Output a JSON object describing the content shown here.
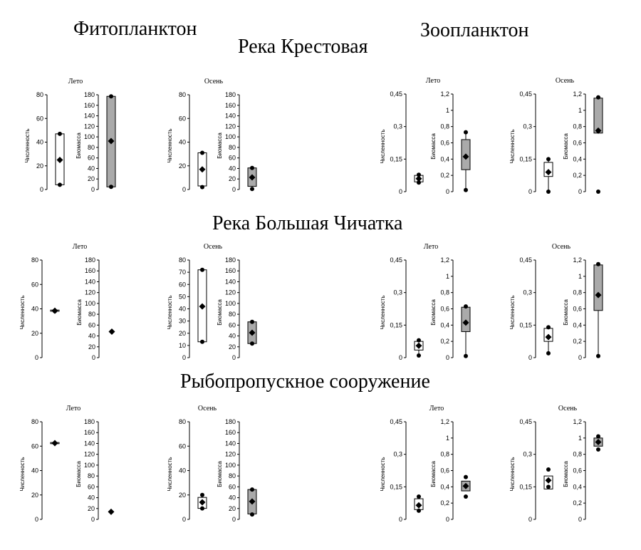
{
  "headings": {
    "phyto": "Фитопланктон",
    "zoo": "Зоопланктон",
    "rivers": [
      "Река Крестовая",
      "Река Большая Чичатка",
      "Рыбопропускное сооружение"
    ]
  },
  "colors": {
    "fill_numbers": "#ffffff",
    "fill_biomass": "#aaaaaa",
    "stroke": "#000000"
  },
  "chart_data": [
    {
      "type": "boxplot",
      "group": "Фитопланктон",
      "site": "Река Крестовая",
      "title": "Лето",
      "left": {
        "ylabel": "Численность",
        "ylim": [
          0,
          80
        ],
        "ticks": [
          "0",
          "20",
          "40",
          "60",
          "80"
        ],
        "box": [
          4,
          47
        ],
        "points": [
          4,
          47
        ],
        "mean": 25
      },
      "right": {
        "ylabel": "Биомасса",
        "ylim": [
          0,
          180
        ],
        "ticks": [
          "0",
          "20",
          "40",
          "60",
          "80",
          "100",
          "120",
          "140",
          "160",
          "180"
        ],
        "box": [
          5,
          177
        ],
        "points": [
          5,
          177
        ],
        "mean": 92
      }
    },
    {
      "type": "boxplot",
      "group": "Фитопланктон",
      "site": "Река Крестовая",
      "title": "Осень",
      "left": {
        "ylabel": "Численность",
        "ylim": [
          0,
          80
        ],
        "ticks": [
          "0",
          "20",
          "40",
          "60",
          "80"
        ],
        "box": [
          3,
          31
        ],
        "points": [
          2,
          31
        ],
        "mean": 17
      },
      "right": {
        "ylabel": "Биомасса",
        "ylim": [
          0,
          180
        ],
        "ticks": [
          "0",
          "20",
          "40",
          "60",
          "80",
          "100",
          "120",
          "140",
          "160",
          "180"
        ],
        "box": [
          6,
          41
        ],
        "points": [
          1,
          41
        ],
        "mean": 23
      }
    },
    {
      "type": "boxplot",
      "group": "Зоопланктон",
      "site": "Река Крестовая",
      "title": "Лето",
      "left": {
        "ylabel": "Численность",
        "ylim": [
          0,
          0.45
        ],
        "ticks": [
          "0",
          "0,15",
          "0,3",
          "0,45"
        ],
        "box": [
          0.045,
          0.075
        ],
        "points": [
          0.042,
          0.078
        ],
        "mean": 0.06
      },
      "right": {
        "ylabel": "Биомасса",
        "ylim": [
          0,
          1.2
        ],
        "ticks": [
          "0",
          "0,2",
          "0,4",
          "0,6",
          "0,8",
          "1",
          "1,2"
        ],
        "box": [
          0.27,
          0.64
        ],
        "whisker": [
          0.02,
          0.73
        ],
        "points": [
          0.02,
          0.73
        ],
        "mean": 0.43
      }
    },
    {
      "type": "boxplot",
      "group": "Зоопланктон",
      "site": "Река Крестовая",
      "title": "Осень",
      "left": {
        "ylabel": "Численность",
        "ylim": [
          0,
          0.45
        ],
        "ticks": [
          "0",
          "0,15",
          "0,3",
          "0,45"
        ],
        "box": [
          0.07,
          0.135
        ],
        "whisker": [
          0,
          0.15
        ],
        "points": [
          0,
          0.15
        ],
        "mean": 0.09
      },
      "right": {
        "ylabel": "Биомасса",
        "ylim": [
          0,
          1.2
        ],
        "ticks": [
          "0",
          "0,2",
          "0,4",
          "0,6",
          "0,8",
          "1",
          "1,2"
        ],
        "box": [
          0.72,
          1.15
        ],
        "points": [
          0,
          1.16
        ],
        "mean": 0.75
      }
    },
    {
      "type": "boxplot",
      "group": "Фитопланктон",
      "site": "Река Большая Чичатка",
      "title": "Лето",
      "left": {
        "ylabel": "Численность",
        "ylim": [
          0,
          80
        ],
        "ticks": [
          "0",
          "20",
          "40",
          "60",
          "80"
        ],
        "box": [
          38,
          39
        ],
        "points": [
          38
        ],
        "mean": 38.5
      },
      "right": {
        "ylabel": "Биомасса",
        "ylim": [
          0,
          180
        ],
        "ticks": [
          "0",
          "20",
          "40",
          "60",
          "80",
          "100",
          "120",
          "140",
          "160",
          "180"
        ],
        "box": [],
        "points": [],
        "mean": 48
      }
    },
    {
      "type": "boxplot",
      "group": "Фитопланктон",
      "site": "Река Большая Чичатка",
      "title": "Осень",
      "left": {
        "ylabel": "Численность",
        "ylim": [
          0,
          80
        ],
        "ticks": [
          "0",
          "10",
          "20",
          "30",
          "40",
          "50",
          "60",
          "70",
          "80"
        ],
        "box": [
          13,
          72
        ],
        "points": [
          13,
          72
        ],
        "mean": 42
      },
      "right": {
        "ylabel": "Биомасса",
        "ylim": [
          0,
          180
        ],
        "ticks": [
          "0",
          "20",
          "40",
          "60",
          "80",
          "100",
          "120",
          "140",
          "160",
          "180"
        ],
        "box": [
          26,
          66
        ],
        "points": [
          26,
          66
        ],
        "mean": 46
      }
    },
    {
      "type": "boxplot",
      "group": "Зоопланктон",
      "site": "Река Большая Чичатка",
      "title": "Лето",
      "left": {
        "ylabel": "Численность",
        "ylim": [
          0,
          0.45
        ],
        "ticks": [
          "0",
          "0,15",
          "0,3",
          "0,45"
        ],
        "box": [
          0.035,
          0.075
        ],
        "whisker": [
          0.01,
          0.08
        ],
        "points": [
          0.01,
          0.08
        ],
        "mean": 0.055
      },
      "right": {
        "ylabel": "Биомасса",
        "ylim": [
          0,
          1.2
        ],
        "ticks": [
          "0",
          "0,2",
          "0,4",
          "0,6",
          "0,8",
          "1",
          "1,2"
        ],
        "box": [
          0.32,
          0.62
        ],
        "whisker": [
          0.02,
          0.63
        ],
        "points": [
          0.02,
          0.63
        ],
        "mean": 0.43
      }
    },
    {
      "type": "boxplot",
      "group": "Зоопланктон",
      "site": "Река Большая Чичатка",
      "title": "Осень",
      "left": {
        "ylabel": "Численность",
        "ylim": [
          0,
          0.45
        ],
        "ticks": [
          "0",
          "0,15",
          "0,3",
          "0,45"
        ],
        "box": [
          0.075,
          0.135
        ],
        "whisker": [
          0.02,
          0.14
        ],
        "points": [
          0.02,
          0.14
        ],
        "mean": 0.095
      },
      "right": {
        "ylabel": "Биомасса",
        "ylim": [
          0,
          1.2
        ],
        "ticks": [
          "0",
          "0,2",
          "0,4",
          "0,6",
          "0,8",
          "1",
          "1,2"
        ],
        "box": [
          0.58,
          1.14
        ],
        "whisker": [
          0.02,
          1.15
        ],
        "points": [
          0.02,
          1.15
        ],
        "mean": 0.77
      }
    },
    {
      "type": "boxplot",
      "group": "Фитопланктон",
      "site": "Рыбопропускное сооружение",
      "title": "Лето",
      "left": {
        "ylabel": "Численность",
        "ylim": [
          0,
          80
        ],
        "ticks": [
          "0",
          "20",
          "40",
          "60",
          "80"
        ],
        "box": [
          62,
          63
        ],
        "points": [
          62.5
        ],
        "mean": 62.5
      },
      "right": {
        "ylabel": "Биомасса",
        "ylim": [
          0,
          180
        ],
        "ticks": [
          "0",
          "20",
          "40",
          "60",
          "80",
          "100",
          "120",
          "140",
          "160",
          "180"
        ],
        "box": [],
        "points": [],
        "mean": 14
      }
    },
    {
      "type": "boxplot",
      "group": "Фитопланктон",
      "site": "Рыбопропускное сооружение",
      "title": "Осень",
      "left": {
        "ylabel": "Численность",
        "ylim": [
          0,
          80
        ],
        "ticks": [
          "0",
          "20",
          "40",
          "60",
          "80"
        ],
        "box": [
          9,
          18
        ],
        "points": [
          9,
          20
        ],
        "mean": 14
      },
      "right": {
        "ylabel": "Биомасса",
        "ylim": [
          0,
          180
        ],
        "ticks": [
          "0",
          "20",
          "40",
          "60",
          "80",
          "100",
          "120",
          "140",
          "160",
          "180"
        ],
        "box": [
          10,
          55
        ],
        "points": [
          9,
          55
        ],
        "mean": 33
      }
    },
    {
      "type": "boxplot",
      "group": "Зоопланктон",
      "site": "Рыбопропускное сооружение",
      "title": "Лето",
      "left": {
        "ylabel": "Численность",
        "ylim": [
          0,
          0.45
        ],
        "ticks": [
          "0",
          "0,15",
          "0,3",
          "0,45"
        ],
        "box": [
          0.045,
          0.095
        ],
        "points": [
          0.04,
          0.105
        ],
        "mean": 0.065
      },
      "right": {
        "ylabel": "Биомасса",
        "ylim": [
          0,
          1.2
        ],
        "ticks": [
          "0",
          "0,2",
          "0,4",
          "0,6",
          "0,8",
          "1",
          "1,2"
        ],
        "box": [
          0.35,
          0.47
        ],
        "points": [
          0.28,
          0.52
        ],
        "mean": 0.41
      }
    },
    {
      "type": "boxplot",
      "group": "Зоопланктон",
      "site": "Рыбопропускное сооружение",
      "title": "Осень",
      "left": {
        "ylabel": "Численность",
        "ylim": [
          0,
          0.45
        ],
        "ticks": [
          "0",
          "0,15",
          "0,3",
          "0,45"
        ],
        "box": [
          0.14,
          0.2
        ],
        "points": [
          0.15,
          0.23
        ],
        "mean": 0.18
      },
      "right": {
        "ylabel": "Биомасса",
        "ylim": [
          0,
          1.2
        ],
        "ticks": [
          "0",
          "0,2",
          "0,4",
          "0,6",
          "0,8",
          "1",
          "1,2"
        ],
        "box": [
          0.9,
          1.0
        ],
        "points": [
          0.86,
          1.02
        ],
        "mean": 0.95
      }
    }
  ]
}
